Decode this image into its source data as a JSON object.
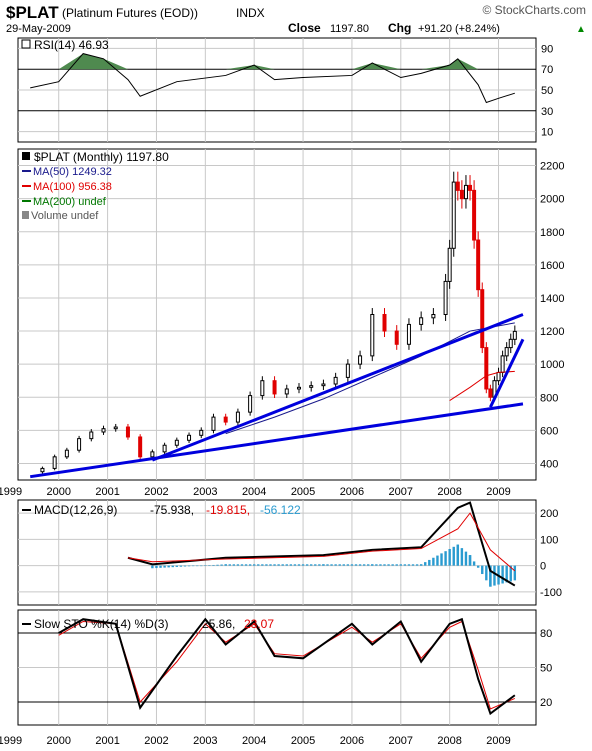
{
  "header": {
    "symbol": "$PLAT",
    "name": "(Platinum Futures (EOD))",
    "exchange": "INDX",
    "brand": "© StockCharts.com",
    "date": "29-May-2009",
    "close_label": "Close",
    "close_value": "1197.80",
    "chg_label": "Chg",
    "chg_value": "+91.20 (+8.24%)",
    "chg_arrow": "▲"
  },
  "colors": {
    "up": "#000000",
    "down": "#e00000",
    "trendline": "#0000dd",
    "ma50": "#1a1a8c",
    "ma100": "#e00000",
    "ma200": "#007700",
    "rsi_fill": "#4f8a4f",
    "macd_hist": "#2a9bd0",
    "grid": "#c8c8c8"
  },
  "rsi_panel": {
    "label": "RSI(14) 46.93",
    "ticks": [
      "90",
      "70",
      "50",
      "30",
      "10"
    ],
    "overbought": 70,
    "oversold": 30
  },
  "price_panel": {
    "label": "$PLAT (Monthly) 1197.80",
    "ma50_label": "MA(50) 1249.32",
    "ma100_label": "MA(100) 956.38",
    "ma200_label": "MA(200) undef",
    "volume_label": "Volume undef",
    "ticks": [
      "2200",
      "2000",
      "1800",
      "1600",
      "1400",
      "1200",
      "1000",
      "800",
      "600",
      "400"
    ]
  },
  "macd_panel": {
    "label_a": "MACD(12,26,9)",
    "label_b": "-75.938,",
    "label_c": "-19.815,",
    "label_d": "-56.122",
    "ticks": [
      "200",
      "100",
      "0",
      "-100"
    ]
  },
  "sto_panel": {
    "label_a": "Slow STO %K(14) %D(3)",
    "label_b": "25.86,",
    "label_c": "23.07",
    "ticks": [
      "80",
      "50",
      "20"
    ]
  },
  "x_axis": {
    "years": [
      "1999",
      "2000",
      "2001",
      "2002",
      "2003",
      "2004",
      "2005",
      "2006",
      "2007",
      "2008",
      "2009"
    ]
  },
  "chart_data": [
    {
      "type": "candlestick",
      "title": "$PLAT (Monthly) 1197.80",
      "ylim": [
        300,
        2300
      ],
      "x_unit": "month",
      "series": [
        {
          "name": "$PLAT (Monthly) 1197.80",
          "x": [
            "1999-06",
            "1999-09",
            "1999-12",
            "2000-03",
            "2000-06",
            "2000-09",
            "2000-12",
            "2001-03",
            "2001-06",
            "2001-09",
            "2001-12",
            "2002-03",
            "2002-06",
            "2002-09",
            "2002-12",
            "2003-03",
            "2003-06",
            "2003-09",
            "2003-12",
            "2004-03",
            "2004-06",
            "2004-09",
            "2004-12",
            "2005-03",
            "2005-06",
            "2005-09",
            "2005-12",
            "2006-03",
            "2006-06",
            "2006-09",
            "2006-12",
            "2007-03",
            "2007-06",
            "2007-09",
            "2007-12",
            "2008-01",
            "2008-02",
            "2008-03",
            "2008-04",
            "2008-05",
            "2008-06",
            "2008-07",
            "2008-08",
            "2008-09",
            "2008-10",
            "2008-11",
            "2008-12",
            "2009-01",
            "2009-02",
            "2009-03",
            "2009-04",
            "2009-05"
          ],
          "values": [
            350,
            370,
            440,
            480,
            550,
            590,
            610,
            620,
            560,
            440,
            470,
            510,
            540,
            570,
            600,
            680,
            650,
            710,
            810,
            900,
            820,
            850,
            860,
            870,
            880,
            920,
            1000,
            1050,
            1300,
            1200,
            1120,
            1240,
            1280,
            1300,
            1500,
            1700,
            2100,
            2050,
            2000,
            2080,
            2050,
            1750,
            1450,
            1100,
            850,
            800,
            900,
            950,
            1050,
            1100,
            1150,
            1197.8
          ]
        },
        {
          "name": "MA(50) 1249.32",
          "x": [
            "2003-06",
            "2004-06",
            "2005-06",
            "2006-06",
            "2007-06",
            "2008-06",
            "2009-05"
          ],
          "values": [
            580,
            680,
            790,
            920,
            1050,
            1200,
            1249.32
          ]
        },
        {
          "name": "MA(100) 956.38",
          "x": [
            "2008-01",
            "2008-06",
            "2008-10",
            "2009-01",
            "2009-05"
          ],
          "values": [
            780,
            860,
            930,
            950,
            956.38
          ]
        }
      ]
    },
    {
      "type": "line",
      "title": "RSI(14) 46.93",
      "ylim": [
        0,
        100
      ],
      "series": [
        {
          "name": "RSI(14) 46.93",
          "x": [
            "1999-06",
            "2000-01",
            "2000-07",
            "2000-12",
            "2001-06",
            "2001-09",
            "2002-06",
            "2003-06",
            "2004-01",
            "2004-06",
            "2005-01",
            "2006-01",
            "2006-06",
            "2007-01",
            "2007-06",
            "2008-01",
            "2008-03",
            "2008-08",
            "2008-10",
            "2009-01",
            "2009-05"
          ],
          "values": [
            52,
            58,
            85,
            80,
            60,
            44,
            58,
            64,
            74,
            60,
            62,
            64,
            76,
            62,
            66,
            74,
            80,
            55,
            38,
            42,
            46.93
          ]
        }
      ]
    },
    {
      "type": "line",
      "title": "MACD(12,26,9) -75.938, -19.815, -56.122",
      "ylim": [
        -150,
        250
      ],
      "series": [
        {
          "name": "MACD(12,26,9) -75.938,",
          "x": [
            "2001-06",
            "2001-12",
            "2003-06",
            "2005-06",
            "2006-06",
            "2007-06",
            "2008-03",
            "2008-06",
            "2008-11",
            "2009-05"
          ],
          "values": [
            30,
            5,
            30,
            40,
            60,
            70,
            220,
            240,
            -20,
            -75.938
          ]
        },
        {
          "name": "-19.815,",
          "x": [
            "2001-06",
            "2001-12",
            "2003-06",
            "2005-06",
            "2006-06",
            "2007-06",
            "2008-03",
            "2008-06",
            "2008-11",
            "2009-05"
          ],
          "values": [
            30,
            15,
            25,
            35,
            55,
            65,
            140,
            200,
            60,
            -19.815
          ]
        },
        {
          "name": "-56.122",
          "x": [
            "2001-12",
            "2003-06",
            "2005-06",
            "2006-06",
            "2007-06",
            "2008-03",
            "2008-06",
            "2008-11",
            "2009-05"
          ],
          "values": [
            -10,
            5,
            5,
            5,
            5,
            80,
            40,
            -80,
            -56.122
          ]
        }
      ]
    },
    {
      "type": "line",
      "title": "Slow STO %K(14) %D(3) 25.86, 23.07",
      "ylim": [
        0,
        100
      ],
      "series": [
        {
          "name": "Slow STO %K(14) %D(3) 25.86,",
          "x": [
            "2000-01",
            "2000-07",
            "2001-03",
            "2001-09",
            "2002-06",
            "2003-01",
            "2003-06",
            "2004-01",
            "2004-06",
            "2005-01",
            "2006-01",
            "2006-06",
            "2007-01",
            "2007-06",
            "2008-01",
            "2008-04",
            "2008-08",
            "2008-11",
            "2009-05"
          ],
          "values": [
            80,
            92,
            88,
            15,
            60,
            92,
            70,
            90,
            60,
            58,
            88,
            70,
            90,
            55,
            88,
            92,
            40,
            10,
            25.86
          ]
        },
        {
          "name": "23.07",
          "x": [
            "2000-01",
            "2000-07",
            "2001-03",
            "2001-09",
            "2002-06",
            "2003-01",
            "2003-06",
            "2004-01",
            "2004-06",
            "2005-01",
            "2006-01",
            "2006-06",
            "2007-01",
            "2007-06",
            "2008-01",
            "2008-04",
            "2008-08",
            "2008-11",
            "2009-05"
          ],
          "values": [
            78,
            90,
            88,
            20,
            55,
            88,
            72,
            88,
            62,
            60,
            85,
            72,
            88,
            58,
            85,
            90,
            48,
            14,
            23.07
          ]
        }
      ]
    }
  ]
}
